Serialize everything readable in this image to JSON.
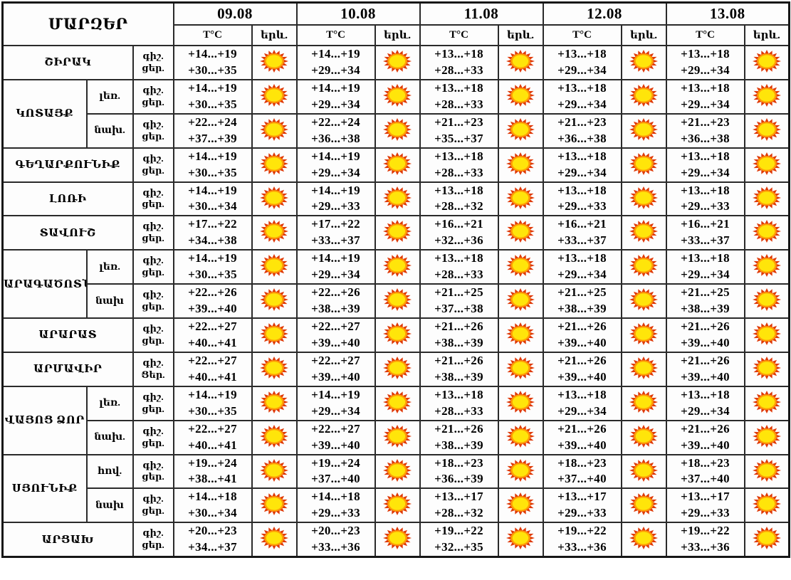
{
  "colors": {
    "background": "#ffffff",
    "border": "#2a2a2a",
    "text": "#000000",
    "sun_spikes": "#df3a08",
    "sun_ring": "#ff9d06",
    "sun_core": "#ffe50a"
  },
  "chart_data": {
    "type": "table",
    "title": "ՄԱՐԶԵՐ",
    "columns": [
      "09.08",
      "10.08",
      "11.08",
      "12.08",
      "13.08"
    ],
    "subcolumns": [
      "T°C",
      "երև."
    ],
    "daypart_labels": {
      "night": "գիշ.",
      "day": "ցեր."
    },
    "phenomena_icon": "sun",
    "rows": [
      {
        "region": "ՇԻՐԱԿ",
        "region_rowspan": 1,
        "zone": null,
        "days": [
          {
            "night": "+14...+19",
            "day": "+30...+35",
            "icon": "sun"
          },
          {
            "night": "+14...+19",
            "day": "+29...+34",
            "icon": "sun"
          },
          {
            "night": "+13...+18",
            "day": "+28...+33",
            "icon": "sun"
          },
          {
            "night": "+13...+18",
            "day": "+29...+34",
            "icon": "sun"
          },
          {
            "night": "+13...+18",
            "day": "+29...+34",
            "icon": "sun"
          }
        ]
      },
      {
        "region": "ԿՈՏԱՅՔ",
        "region_rowspan": 2,
        "zone": "լեռ.",
        "days": [
          {
            "night": "+14...+19",
            "day": "+30...+35",
            "icon": "sun"
          },
          {
            "night": "+14...+19",
            "day": "+29...+34",
            "icon": "sun"
          },
          {
            "night": "+13...+18",
            "day": "+28...+33",
            "icon": "sun"
          },
          {
            "night": "+13...+18",
            "day": "+29...+34",
            "icon": "sun"
          },
          {
            "night": "+13...+18",
            "day": "+29...+34",
            "icon": "sun"
          }
        ]
      },
      {
        "region": null,
        "zone": "նախ.",
        "days": [
          {
            "night": "+22...+24",
            "day": "+37...+39",
            "icon": "sun"
          },
          {
            "night": "+22...+24",
            "day": "+36...+38",
            "icon": "sun"
          },
          {
            "night": "+21...+23",
            "day": "+35...+37",
            "icon": "sun"
          },
          {
            "night": "+21...+23",
            "day": "+36...+38",
            "icon": "sun"
          },
          {
            "night": "+21...+23",
            "day": "+36...+38",
            "icon": "sun"
          }
        ]
      },
      {
        "region": "ԳԵՂԱՐՔՈՒՆԻՔ",
        "region_rowspan": 1,
        "zone": null,
        "days": [
          {
            "night": "+14...+19",
            "day": "+30...+35",
            "icon": "sun"
          },
          {
            "night": "+14...+19",
            "day": "+29...+34",
            "icon": "sun"
          },
          {
            "night": "+13...+18",
            "day": "+28...+33",
            "icon": "sun"
          },
          {
            "night": "+13...+18",
            "day": "+29...+34",
            "icon": "sun"
          },
          {
            "night": "+13...+18",
            "day": "+29...+34",
            "icon": "sun"
          }
        ]
      },
      {
        "region": "ԼՈՌԻ",
        "region_rowspan": 1,
        "zone": null,
        "days": [
          {
            "night": "+14...+19",
            "day": "+30...+34",
            "icon": "sun"
          },
          {
            "night": "+14...+19",
            "day": "+29...+33",
            "icon": "sun"
          },
          {
            "night": "+13...+18",
            "day": "+28...+32",
            "icon": "sun"
          },
          {
            "night": "+13...+18",
            "day": "+29...+33",
            "icon": "sun"
          },
          {
            "night": "+13...+18",
            "day": "+29...+33",
            "icon": "sun"
          }
        ]
      },
      {
        "region": "ՏԱՎՈՒՇ",
        "region_rowspan": 1,
        "zone": null,
        "days": [
          {
            "night": "+17...+22",
            "day": "+34...+38",
            "icon": "sun"
          },
          {
            "night": "+17...+22",
            "day": "+33...+37",
            "icon": "sun"
          },
          {
            "night": "+16...+21",
            "day": "+32...+36",
            "icon": "sun"
          },
          {
            "night": "+16...+21",
            "day": "+33...+37",
            "icon": "sun"
          },
          {
            "night": "+16...+21",
            "day": "+33...+37",
            "icon": "sun"
          }
        ]
      },
      {
        "region": "ԱՐԱԳԱԾՈՏՆ",
        "region_rowspan": 2,
        "zone": "լեռ.",
        "days": [
          {
            "night": "+14...+19",
            "day": "+30...+35",
            "icon": "sun"
          },
          {
            "night": "+14...+19",
            "day": "+29...+34",
            "icon": "sun"
          },
          {
            "night": "+13...+18",
            "day": "+28...+33",
            "icon": "sun"
          },
          {
            "night": "+13...+18",
            "day": "+29...+34",
            "icon": "sun"
          },
          {
            "night": "+13...+18",
            "day": "+29...+34",
            "icon": "sun"
          }
        ]
      },
      {
        "region": null,
        "zone": "նախ",
        "days": [
          {
            "night": "+22...+26",
            "day": "+39...+40",
            "icon": "sun"
          },
          {
            "night": "+22...+26",
            "day": "+38...+39",
            "icon": "sun"
          },
          {
            "night": "+21...+25",
            "day": "+37...+38",
            "icon": "sun"
          },
          {
            "night": "+21...+25",
            "day": "+38...+39",
            "icon": "sun"
          },
          {
            "night": "+21...+25",
            "day": "+38...+39",
            "icon": "sun"
          }
        ]
      },
      {
        "region": "ԱՐԱՐԱՏ",
        "region_rowspan": 1,
        "zone": null,
        "days": [
          {
            "night": "+22...+27",
            "day": "+40...+41",
            "icon": "sun"
          },
          {
            "night": "+22...+27",
            "day": "+39...+40",
            "icon": "sun"
          },
          {
            "night": "+21...+26",
            "day": "+38...+39",
            "icon": "sun"
          },
          {
            "night": "+21...+26",
            "day": "+39...+40",
            "icon": "sun"
          },
          {
            "night": "+21...+26",
            "day": "+39...+40",
            "icon": "sun"
          }
        ]
      },
      {
        "region": "ԱՐՄԱՎԻՐ",
        "region_rowspan": 1,
        "zone": null,
        "day_label": "Ցեր.",
        "days": [
          {
            "night": "+22...+27",
            "day": "+40...+41",
            "icon": "sun"
          },
          {
            "night": "+22...+27",
            "day": "+39...+40",
            "icon": "sun"
          },
          {
            "night": "+21...+26",
            "day": "+38...+39",
            "icon": "sun"
          },
          {
            "night": "+21...+26",
            "day": "+39...+40",
            "icon": "sun"
          },
          {
            "night": "+21...+26",
            "day": "+39...+40",
            "icon": "sun"
          }
        ]
      },
      {
        "region": "ՎԱՅՈՑ ՁՈՐ",
        "region_rowspan": 2,
        "zone": "լեռ.",
        "days": [
          {
            "night": "+14...+19",
            "day": "+30...+35",
            "icon": "sun"
          },
          {
            "night": "+14...+19",
            "day": "+29...+34",
            "icon": "sun"
          },
          {
            "night": "+13...+18",
            "day": "+28...+33",
            "icon": "sun"
          },
          {
            "night": "+13...+18",
            "day": "+29...+34",
            "icon": "sun"
          },
          {
            "night": "+13...+18",
            "day": "+29...+34",
            "icon": "sun"
          }
        ]
      },
      {
        "region": null,
        "zone": "նախ.",
        "days": [
          {
            "night": "+22...+27",
            "day": "+40...+41",
            "icon": "sun"
          },
          {
            "night": "+22...+27",
            "day": "+39...+40",
            "icon": "sun"
          },
          {
            "night": "+21...+26",
            "day": "+38...+39",
            "icon": "sun"
          },
          {
            "night": "+21...+26",
            "day": "+39...+40",
            "icon": "sun"
          },
          {
            "night": "+21...+26",
            "day": "+39...+40",
            "icon": "sun"
          }
        ]
      },
      {
        "region": "ՍՅՈՒՆԻՔ",
        "region_rowspan": 2,
        "zone": "հով.",
        "days": [
          {
            "night": "+19...+24",
            "day": "+38...+41",
            "icon": "sun"
          },
          {
            "night": "+19...+24",
            "day": "+37...+40",
            "icon": "sun"
          },
          {
            "night": "+18...+23",
            "day": "+36...+39",
            "icon": "sun"
          },
          {
            "night": "+18...+23",
            "day": "+37...+40",
            "icon": "sun"
          },
          {
            "night": "+18...+23",
            "day": "+37...+40",
            "icon": "sun"
          }
        ]
      },
      {
        "region": null,
        "zone": "նախ",
        "days": [
          {
            "night": "+14...+18",
            "day": "+30...+34",
            "icon": "sun"
          },
          {
            "night": "+14...+18",
            "day": "+29...+33",
            "icon": "sun"
          },
          {
            "night": "+13...+17",
            "day": "+28...+32",
            "icon": "sun"
          },
          {
            "night": "+13...+17",
            "day": "+29...+33",
            "icon": "sun"
          },
          {
            "night": "+13...+17",
            "day": "+29...+33",
            "icon": "sun"
          }
        ]
      },
      {
        "region": "ԱՐՑԱԽ",
        "region_rowspan": 1,
        "zone": null,
        "days": [
          {
            "night": "+20...+23",
            "day": "+34...+37",
            "icon": "sun"
          },
          {
            "night": "+20...+23",
            "day": "+33...+36",
            "icon": "sun"
          },
          {
            "night": "+19...+22",
            "day": "+32...+35",
            "icon": "sun"
          },
          {
            "night": "+19...+22",
            "day": "+33...+36",
            "icon": "sun"
          },
          {
            "night": "+19...+22",
            "day": "+33...+36",
            "icon": "sun"
          }
        ]
      }
    ]
  }
}
